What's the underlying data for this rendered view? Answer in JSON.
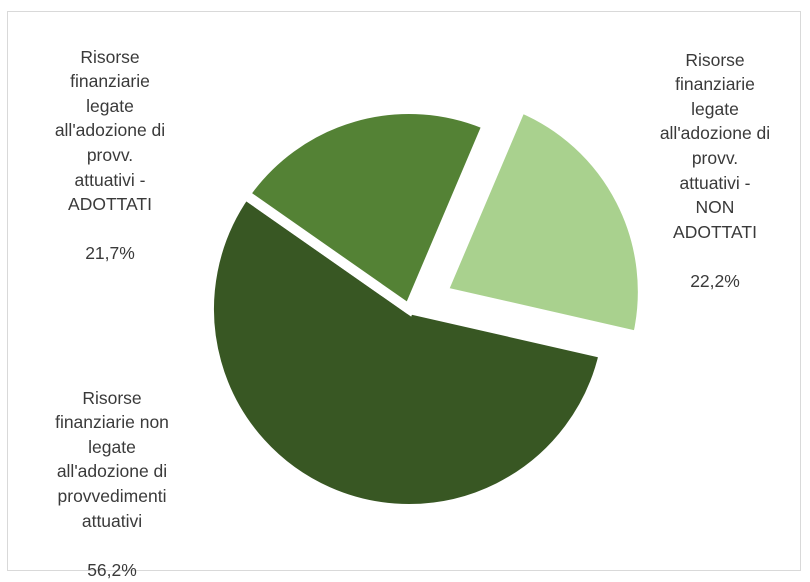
{
  "chart_data": {
    "type": "pie",
    "start_angle_deg": 23,
    "direction": "clockwise",
    "exploded_slice": 0,
    "slices": [
      {
        "label": "Risorse\nfinanziarie\nlegate\nall'adozione di\nprovv.\nattuativi -\nNON\nADOTTATI",
        "value": 22.2,
        "value_label": "22,2%",
        "color": "#a9d18e"
      },
      {
        "label": "Risorse\nfinanziarie non\nlegate\nall'adozione di\nprovvedimenti\nattuativi",
        "value": 56.2,
        "value_label": "56,2%",
        "color": "#385723"
      },
      {
        "label": "Risorse\nfinanziarie\nlegate\nall'adozione di\nprovv.\nattuativi -\nADOTTATI",
        "value": 21.7,
        "value_label": "21,7%",
        "color": "#548235"
      }
    ]
  }
}
